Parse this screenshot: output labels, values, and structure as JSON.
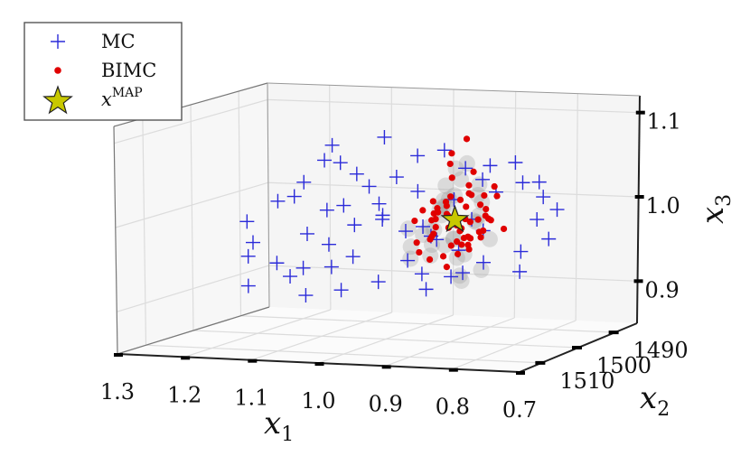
{
  "chart_data": {
    "type": "scatter",
    "projection": "3d",
    "grid": true,
    "legend_position": "top-left",
    "axes": {
      "x1": {
        "label": "x",
        "label_subscript": "1",
        "ticks": [
          1.3,
          1.2,
          1.1,
          1.0,
          0.9,
          0.8,
          0.7
        ],
        "tick_labels": [
          "1.3",
          "1.2",
          "1.1",
          "1.0",
          "0.9",
          "0.8",
          "0.7"
        ],
        "range": [
          0.7,
          1.3
        ]
      },
      "x2": {
        "label": "x",
        "label_subscript": "2",
        "ticks": [
          1490,
          1500,
          1510
        ],
        "tick_labels": [
          "1490",
          "1500",
          "1510"
        ],
        "range": [
          1484,
          1516
        ]
      },
      "x3": {
        "label": "x",
        "label_subscript": "3",
        "ticks": [
          0.9,
          1.0,
          1.1
        ],
        "tick_labels": [
          "0.9",
          "1.0",
          "1.1"
        ],
        "range": [
          0.85,
          1.12
        ]
      }
    },
    "legend": [
      {
        "key": "mc",
        "label": "MC",
        "marker": "plus",
        "color": "#2b2bd9"
      },
      {
        "key": "bimc",
        "label": "BIMC",
        "marker": "dot",
        "color": "#e00000"
      },
      {
        "key": "map",
        "label": "x",
        "label_superscript": "MAP",
        "marker": "star",
        "color": "#c8c800"
      }
    ],
    "series": [
      {
        "name": "MC",
        "marker": "plus",
        "color": "#2b2bd9",
        "x": [
          1.2,
          1.18,
          1.17,
          1.16,
          1.15,
          1.14,
          1.13,
          1.12,
          1.11,
          1.1,
          1.09,
          1.08,
          1.07,
          1.06,
          1.05,
          1.04,
          1.03,
          1.02,
          1.01,
          1.0,
          0.99,
          0.98,
          0.97,
          0.96,
          0.95,
          0.94,
          0.93,
          0.92,
          0.91,
          0.9,
          0.89,
          0.88,
          0.87,
          0.86,
          0.85,
          0.84,
          0.83,
          0.82,
          0.81,
          0.8,
          0.79,
          0.78,
          0.77,
          0.76,
          0.75,
          1.15,
          1.13,
          1.08,
          1.05,
          1.02,
          0.99,
          0.97,
          0.94,
          0.91,
          0.88,
          0.85,
          0.83,
          0.8,
          1.12,
          1.1
        ],
        "y": [
          1502,
          1498,
          1505,
          1495,
          1509,
          1500,
          1491,
          1507,
          1497,
          1503,
          1493,
          1510,
          1499,
          1504,
          1496,
          1501,
          1508,
          1494,
          1506,
          1492,
          1502,
          1498,
          1505,
          1495,
          1509,
          1500,
          1491,
          1507,
          1497,
          1503,
          1493,
          1510,
          1499,
          1504,
          1496,
          1501,
          1508,
          1494,
          1506,
          1492,
          1500,
          1497,
          1503,
          1495,
          1499,
          1490,
          1512,
          1488,
          1511,
          1489,
          1512,
          1490,
          1511,
          1488,
          1509,
          1491,
          1511,
          1493,
          1496,
          1504
        ],
        "z": [
          0.99,
          1.01,
          0.97,
          1.03,
          0.96,
          1.02,
          1.05,
          0.95,
          1.0,
          0.98,
          1.04,
          0.94,
          1.01,
          0.97,
          1.03,
          0.99,
          0.95,
          1.04,
          0.96,
          1.02,
          1.0,
          0.98,
          1.01,
          0.97,
          1.03,
          0.99,
          1.05,
          0.96,
          1.02,
          0.98,
          1.04,
          0.95,
          1.0,
          0.97,
          1.03,
          0.99,
          0.95,
          1.04,
          0.96,
          1.02,
          0.94,
          1.0,
          0.97,
          1.01,
          0.98,
          1.07,
          0.93,
          1.08,
          0.92,
          1.06,
          0.93,
          1.07,
          0.94,
          1.05,
          0.93,
          1.06,
          0.95,
          1.04,
          1.06,
          0.94
        ]
      },
      {
        "name": "BIMC",
        "marker": "dot",
        "color": "#e00000",
        "x": [
          0.93,
          0.92,
          0.91,
          0.9,
          0.89,
          0.88,
          0.87,
          0.86,
          0.85,
          0.84,
          0.83,
          0.82,
          0.94,
          0.93,
          0.92,
          0.91,
          0.9,
          0.89,
          0.88,
          0.87,
          0.86,
          0.85,
          0.84,
          0.83,
          0.95,
          0.94,
          0.93,
          0.92,
          0.91,
          0.9,
          0.89,
          0.88,
          0.87,
          0.86,
          0.85,
          0.84,
          0.92,
          0.91,
          0.9,
          0.89,
          0.88,
          0.87,
          0.86,
          0.85,
          0.93,
          0.9,
          0.88,
          0.86,
          0.91,
          0.89,
          0.87,
          0.85,
          0.92,
          0.88,
          0.9,
          0.86,
          0.94,
          0.84,
          0.89,
          0.87
        ],
        "y": [
          1499,
          1500,
          1501,
          1498,
          1502,
          1500,
          1499,
          1501,
          1500,
          1498,
          1502,
          1499,
          1501,
          1499,
          1500,
          1502,
          1498,
          1501,
          1499,
          1500,
          1502,
          1498,
          1501,
          1499,
          1500,
          1502,
          1498,
          1501,
          1499,
          1500,
          1502,
          1498,
          1501,
          1499,
          1500,
          1502,
          1497,
          1503,
          1497,
          1503,
          1498,
          1502,
          1497,
          1503,
          1500,
          1499,
          1501,
          1500,
          1499,
          1501,
          1500,
          1499,
          1501,
          1500,
          1499,
          1501,
          1500,
          1499,
          1501,
          1500
        ],
        "z": [
          0.98,
          1.0,
          1.01,
          0.99,
          1.02,
          0.97,
          1.03,
          1.0,
          0.98,
          1.04,
          1.01,
          0.99,
          0.96,
          1.02,
          0.99,
          1.01,
          0.97,
          1.03,
          1.0,
          0.98,
          1.02,
          1.0,
          0.99,
          1.03,
          0.97,
          1.0,
          1.01,
          0.98,
          1.02,
          0.99,
          1.01,
          1.03,
          0.98,
          1.0,
          1.02,
          0.99,
          1.0,
          0.98,
          1.02,
          0.96,
          1.04,
          0.99,
          1.01,
          0.97,
          0.95,
          1.05,
          0.96,
          1.06,
          0.94,
          1.07,
          0.97,
          1.03,
          1.0,
          0.99,
          1.08,
          0.98,
          1.01,
          1.0,
          0.97,
          1.1
        ]
      },
      {
        "name": "x^MAP",
        "marker": "star",
        "color": "#c8c800",
        "x": [
          0.89
        ],
        "y": [
          1500
        ],
        "z": [
          1.0
        ]
      }
    ],
    "background_cloud": {
      "color": "#8a8a8a",
      "opacity": 0.25,
      "x": [
        0.93,
        0.92,
        0.9,
        0.89,
        0.88,
        0.86,
        0.85,
        0.91,
        0.87,
        0.94,
        0.84,
        0.9,
        0.88,
        0.92,
        0.86,
        0.95,
        0.93,
        0.89,
        0.87,
        0.91,
        0.85,
        0.9,
        0.88,
        0.86,
        0.92,
        0.94,
        0.89,
        0.87,
        0.91,
        0.93,
        0.96,
        0.83,
        0.9,
        0.88
      ],
      "y": [
        1500,
        1499,
        1501,
        1500,
        1502,
        1498,
        1501,
        1503,
        1497,
        1500,
        1502,
        1498,
        1500,
        1501,
        1499,
        1502,
        1497,
        1503,
        1501,
        1499,
        1500,
        1498,
        1502,
        1500,
        1498,
        1503,
        1499,
        1500,
        1502,
        1496,
        1500,
        1501,
        1497,
        1503
      ],
      "z": [
        0.99,
        1.01,
        0.97,
        1.03,
        0.98,
        1.02,
        1.0,
        0.96,
        1.04,
        0.98,
        1.01,
        0.95,
        1.05,
        0.97,
        1.03,
        0.99,
        1.0,
        1.02,
        0.96,
        1.04,
        0.94,
        1.06,
        0.98,
        1.0,
        1.02,
        0.97,
        0.93,
        1.07,
        0.99,
        1.01,
        0.95,
        0.98,
        0.92,
        1.03
      ]
    }
  }
}
